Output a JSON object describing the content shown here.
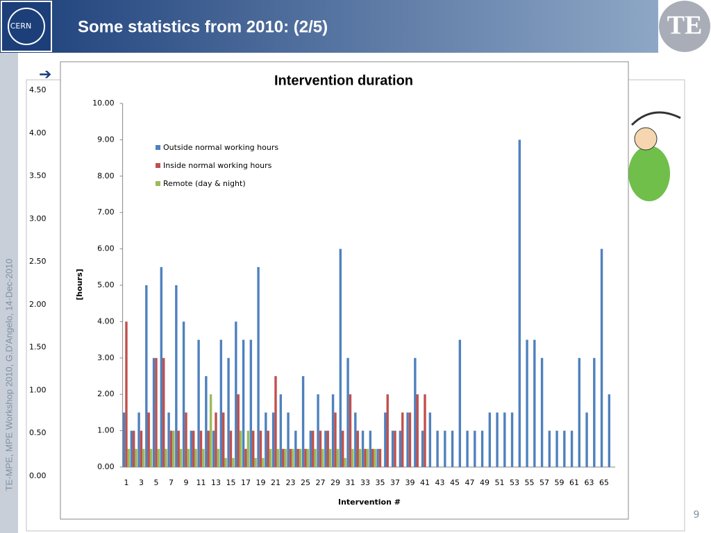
{
  "slide": {
    "title": "Some statistics from 2010: (2/5)",
    "logo_left": "CERN",
    "logo_right": "TE",
    "side_note": "TE-MPE, MPE Workshop 2010, G.D'Angelo, 14-Dec-2010",
    "page_number": "9",
    "background_axis_labels": [
      "4.50",
      "4.00",
      "3.50",
      "3.00",
      "2.50",
      "2.00",
      "1.50",
      "1.00",
      "0.50",
      "0.00"
    ]
  },
  "chart_data": {
    "type": "bar",
    "title": "Intervention duration",
    "y_label": "[hours]",
    "x_label": "Intervention #",
    "categories": [
      "1",
      null,
      "3",
      null,
      "5",
      null,
      "7",
      null,
      "9",
      null,
      "11",
      null,
      "13",
      null,
      "15",
      null,
      "17",
      null,
      "19",
      null,
      "21",
      null,
      "23",
      null,
      "25",
      null,
      "27",
      null,
      "29",
      null,
      "31",
      null,
      "33",
      null,
      "35",
      null,
      "37",
      null,
      "39",
      null,
      "41",
      null,
      "43",
      null,
      "45",
      null,
      "47",
      null,
      "49",
      null,
      "51",
      null,
      "53",
      null,
      "55",
      null,
      "57",
      null,
      "59",
      null,
      "61",
      null,
      "63",
      null,
      "65",
      null
    ],
    "series": [
      {
        "name": "Outside normal working hours",
        "color": "#4f81bd",
        "values": [
          1.5,
          1.0,
          1.5,
          5.0,
          3.0,
          5.5,
          1.5,
          5.0,
          4.0,
          1.0,
          3.5,
          2.5,
          1.0,
          3.5,
          3.0,
          4.0,
          3.5,
          3.5,
          5.5,
          1.5,
          1.5,
          2.0,
          1.5,
          1.0,
          2.5,
          1.0,
          2.0,
          1.0,
          2.0,
          6.0,
          3.0,
          1.5,
          1.0,
          1.0,
          0.5,
          1.5,
          1.0,
          1.0,
          1.5,
          3.0,
          1.0,
          1.5,
          1.0,
          1.0,
          1.0,
          3.5,
          1.0,
          1.0,
          1.0,
          1.5,
          1.5,
          1.5,
          1.5,
          9.0,
          3.5,
          3.5,
          3.0,
          1.0,
          1.0,
          1.0,
          1.0,
          3.0,
          1.5,
          3.0,
          6.0,
          2.0
        ]
      },
      {
        "name": "Inside normal working hours",
        "color": "#c0504d",
        "values": [
          4.0,
          1.0,
          1.0,
          1.5,
          3.0,
          3.0,
          1.0,
          1.0,
          1.5,
          1.0,
          1.0,
          1.0,
          1.5,
          1.5,
          1.0,
          2.0,
          0.5,
          1.0,
          1.0,
          1.0,
          2.5,
          0.5,
          0.5,
          0.5,
          0.5,
          1.0,
          1.0,
          1.0,
          1.5,
          1.0,
          2.0,
          1.0,
          0.5,
          0.5,
          0.5,
          2.0,
          1.0,
          1.5,
          1.5,
          2.0,
          2.0,
          null,
          null,
          null,
          null,
          null,
          null,
          null,
          null,
          null,
          null,
          null,
          null,
          null,
          null,
          null,
          null,
          null,
          null,
          null,
          null,
          null,
          null,
          null,
          null,
          null
        ]
      },
      {
        "name": "Remote (day & night)",
        "color": "#9bbb59",
        "values": [
          0.5,
          0.5,
          0.5,
          0.5,
          0.5,
          0.5,
          1.0,
          0.5,
          0.5,
          0.5,
          0.5,
          2.0,
          0.5,
          0.25,
          0.25,
          1.0,
          1.0,
          0.25,
          0.25,
          0.5,
          0.5,
          0.5,
          0.5,
          0.5,
          0.5,
          0.5,
          0.5,
          0.5,
          0.5,
          0.25,
          0.5,
          0.5,
          0.5,
          0.5,
          null,
          null,
          null,
          null,
          null,
          null,
          null,
          null,
          null,
          null,
          null,
          null,
          null,
          null,
          null,
          null,
          null,
          null,
          null,
          null,
          null,
          null,
          null,
          null,
          null,
          null,
          null,
          null,
          null,
          null,
          null,
          null
        ]
      }
    ],
    "ylim": [
      0,
      10
    ],
    "yticks": [
      {
        "value": 0,
        "label": "0.00"
      },
      {
        "value": 1,
        "label": "1.00"
      },
      {
        "value": 2,
        "label": "2.00"
      },
      {
        "value": 3,
        "label": "3.00"
      },
      {
        "value": 4,
        "label": "4.00"
      },
      {
        "value": 5,
        "label": "5.00"
      },
      {
        "value": 6,
        "label": "6.00"
      },
      {
        "value": 7,
        "label": "7.00"
      },
      {
        "value": 8,
        "label": "8.00"
      },
      {
        "value": 9,
        "label": "9.00"
      },
      {
        "value": 10,
        "label": "10.00"
      }
    ],
    "legend": "upper left",
    "grid": false
  }
}
